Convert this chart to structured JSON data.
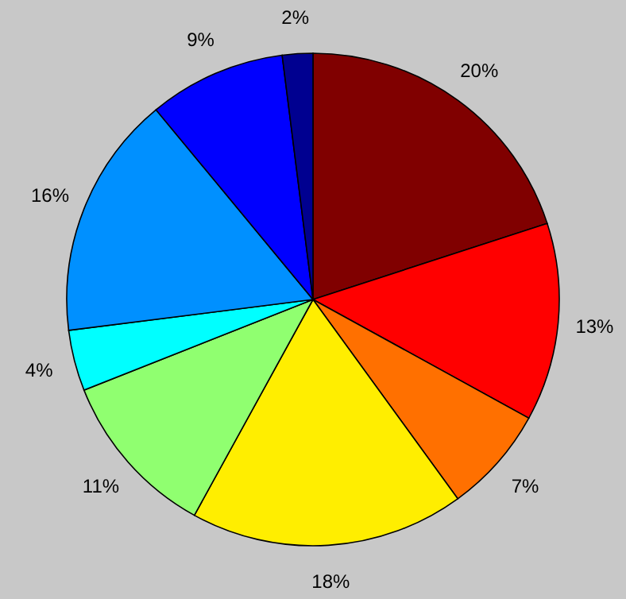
{
  "chart_data": {
    "type": "pie",
    "categories": [
      null,
      null,
      null,
      null,
      null,
      null,
      null,
      null,
      null
    ],
    "values": [
      20,
      13,
      7,
      18,
      11,
      4,
      16,
      9,
      2
    ],
    "colors": [
      "#800000",
      "#ff0000",
      "#ff7000",
      "#ffee00",
      "#90ff70",
      "#00ffff",
      "#0090ff",
      "#0000ff",
      "#000090"
    ],
    "value_labels": [
      "20%",
      "13%",
      "7%",
      "18%",
      "11%",
      "4%",
      "16%",
      "9%",
      "2%"
    ],
    "legend": false
  }
}
